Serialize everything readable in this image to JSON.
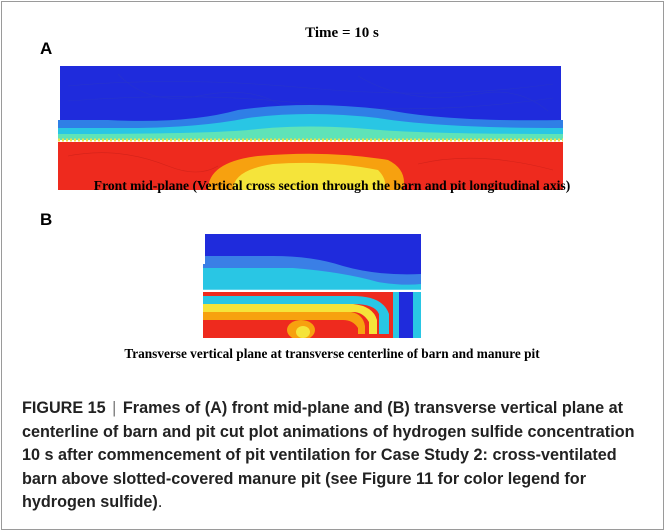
{
  "figure": {
    "time_label": "Time = 10 s",
    "panel_a_letter": "A",
    "panel_b_letter": "B",
    "panel_a_caption": "Front mid-plane (Vertical cross section through the barn and pit longitudinal axis)",
    "panel_b_caption": "Transverse vertical plane at transverse centerline of barn and manure pit"
  },
  "caption": {
    "figure_id": "FIGURE 15",
    "separator": "|",
    "text": "Frames of (A) front mid-plane and (B) transverse vertical plane at centerline of barn and pit cut plot animations of hydrogen sulfide concentration 10 s after commencement of pit ventilation for Case Study 2: cross-ventilated barn above slotted-covered manure pit (see Figure 11 for color legend for hydrogen sulfide)",
    "end": "."
  },
  "colors": {
    "blue": "#1f2bdc",
    "red": "#ee2a1e",
    "orange": "#f7a10f",
    "yellow": "#f5e43a",
    "cyan": "#27c7e3"
  }
}
